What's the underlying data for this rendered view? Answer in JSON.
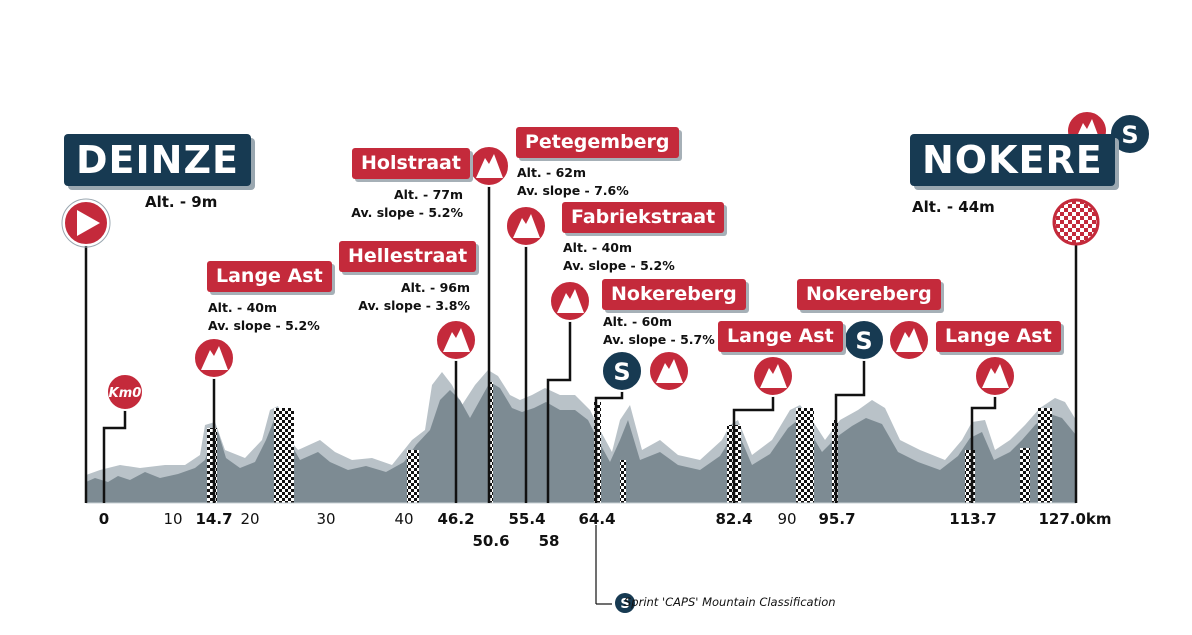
{
  "start": {
    "name": "DEINZE",
    "altitude": "Alt. - 9m"
  },
  "finish": {
    "name": "NOKERE",
    "altitude": "Alt. - 44m"
  },
  "km0_label": "Km0",
  "climbs": [
    {
      "name": "Lange Ast",
      "info1": "Alt. - 40m",
      "info2": "Av. slope - 5.2%"
    },
    {
      "name": "Hellestraat",
      "info1": "Alt. - 96m",
      "info2": "Av. slope - 3.8%"
    },
    {
      "name": "Holstraat",
      "info1": "Alt. - 77m",
      "info2": "Av. slope - 5.2%"
    },
    {
      "name": "Petegemberg",
      "info1": "Alt. - 62m",
      "info2": "Av. slope - 7.6%"
    },
    {
      "name": "Fabriekstraat",
      "info1": "Alt. - 40m",
      "info2": "Av. slope - 5.2%"
    },
    {
      "name": "Nokereberg",
      "info1": "Alt. - 60m",
      "info2": "Av. slope - 5.7%"
    },
    {
      "name": "Lange Ast"
    },
    {
      "name": "Nokereberg"
    },
    {
      "name": "Lange Ast"
    }
  ],
  "sprint_symbol": "S",
  "km_labels": [
    "0",
    "10",
    "14.7",
    "20",
    "30",
    "40",
    "46.2",
    "50.6",
    "55.4",
    "58",
    "64.4",
    "82.4",
    "90",
    "95.7",
    "113.7",
    "127.0km"
  ],
  "legend": {
    "symbol": "S",
    "text": "Sprint 'CAPS' Mountain Classification"
  },
  "colors": {
    "navy": "#173a52",
    "red": "#c42a3b",
    "profile_dark": "#7d8b93",
    "profile_light": "#b9c2c8"
  },
  "icons": [
    "start-flag-icon",
    "finish-checkered-icon",
    "mountain-icon",
    "sprint-icon",
    "cobblestone-sector"
  ]
}
